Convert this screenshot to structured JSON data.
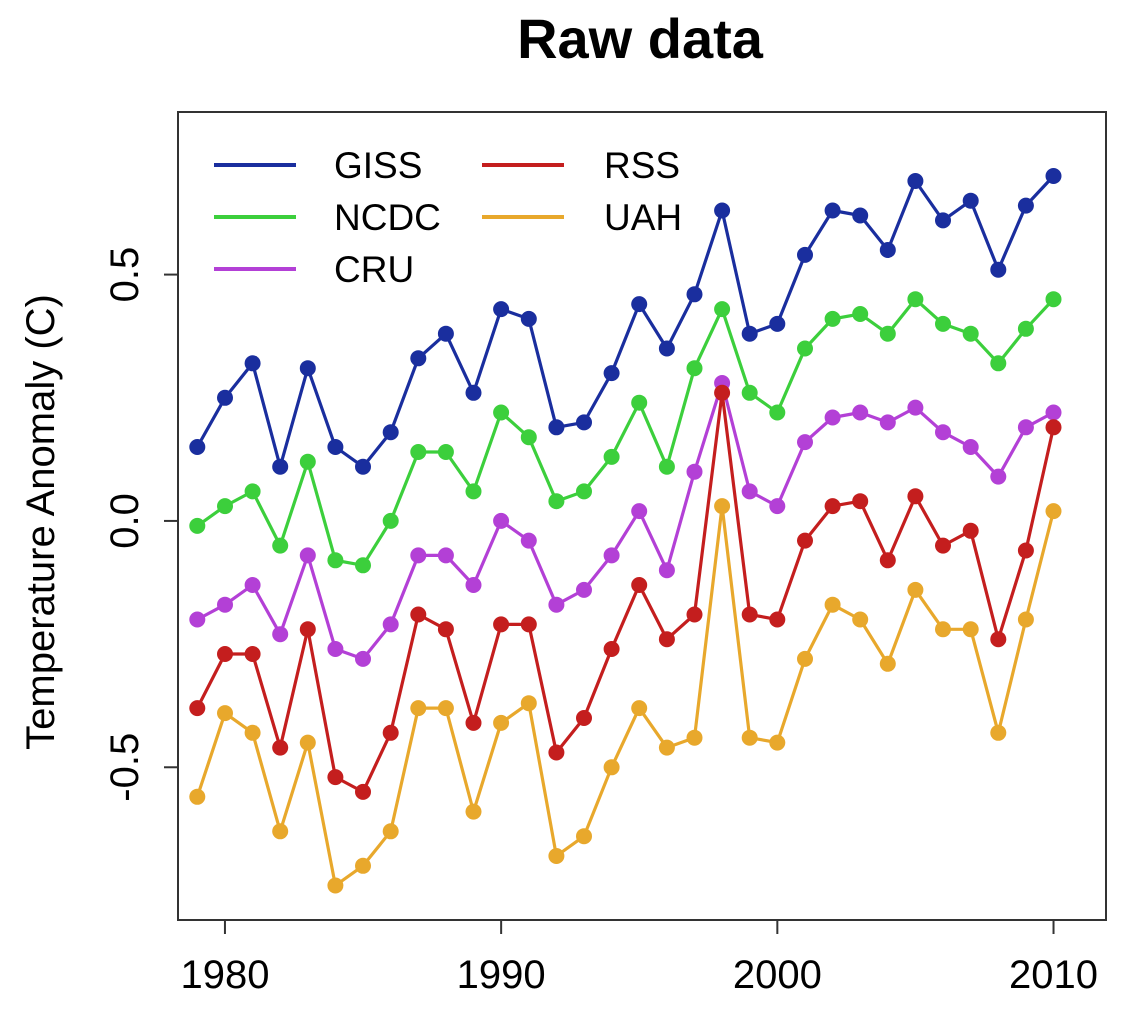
{
  "chart_data": {
    "type": "line",
    "title": "Raw data",
    "xlabel": "",
    "ylabel": "Temperature Anomaly (C)",
    "xlim": [
      1978.3,
      2011.9
    ],
    "ylim": [
      -0.81,
      0.83
    ],
    "xticks": [
      {
        "value": 1980,
        "label": "1980"
      },
      {
        "value": 1990,
        "label": "1990"
      },
      {
        "value": 2000,
        "label": "2000"
      },
      {
        "value": 2010,
        "label": "2010"
      }
    ],
    "yticks": [
      {
        "value": -0.5,
        "label": "-0.5"
      },
      {
        "value": 0.0,
        "label": "0.0"
      },
      {
        "value": 0.5,
        "label": "0.5"
      }
    ],
    "grid": false,
    "legend_position": "top-left",
    "x": [
      1979,
      1980,
      1981,
      1982,
      1983,
      1984,
      1985,
      1986,
      1987,
      1988,
      1989,
      1990,
      1991,
      1992,
      1993,
      1994,
      1995,
      1996,
      1997,
      1998,
      1999,
      2000,
      2001,
      2002,
      2003,
      2004,
      2005,
      2006,
      2007,
      2008,
      2009,
      2010
    ],
    "series": [
      {
        "name": "GISS",
        "color": "#1a2e9e",
        "values": [
          0.15,
          0.25,
          0.32,
          0.11,
          0.31,
          0.15,
          0.11,
          0.18,
          0.33,
          0.38,
          0.26,
          0.43,
          0.41,
          0.19,
          0.2,
          0.3,
          0.44,
          0.35,
          0.46,
          0.63,
          0.38,
          0.4,
          0.54,
          0.63,
          0.62,
          0.55,
          0.69,
          0.61,
          0.65,
          0.51,
          0.64,
          0.7
        ]
      },
      {
        "name": "NCDC",
        "color": "#3ccf3c",
        "values": [
          -0.01,
          0.03,
          0.06,
          -0.05,
          0.12,
          -0.08,
          -0.09,
          0.0,
          0.14,
          0.14,
          0.06,
          0.22,
          0.17,
          0.04,
          0.06,
          0.13,
          0.24,
          0.11,
          0.31,
          0.43,
          0.26,
          0.22,
          0.35,
          0.41,
          0.42,
          0.38,
          0.45,
          0.4,
          0.38,
          0.32,
          0.39,
          0.45
        ]
      },
      {
        "name": "CRU",
        "color": "#b340d6",
        "values": [
          -0.2,
          -0.17,
          -0.13,
          -0.23,
          -0.07,
          -0.26,
          -0.28,
          -0.21,
          -0.07,
          -0.07,
          -0.13,
          0.0,
          -0.04,
          -0.17,
          -0.14,
          -0.07,
          0.02,
          -0.1,
          0.1,
          0.28,
          0.06,
          0.03,
          0.16,
          0.21,
          0.22,
          0.2,
          0.23,
          0.18,
          0.15,
          0.09,
          0.19,
          0.22
        ]
      },
      {
        "name": "RSS",
        "color": "#c41e1e",
        "values": [
          -0.38,
          -0.27,
          -0.27,
          -0.46,
          -0.22,
          -0.52,
          -0.55,
          -0.43,
          -0.19,
          -0.22,
          -0.41,
          -0.21,
          -0.21,
          -0.47,
          -0.4,
          -0.26,
          -0.13,
          -0.24,
          -0.19,
          0.26,
          -0.19,
          -0.2,
          -0.04,
          0.03,
          0.04,
          -0.08,
          0.05,
          -0.05,
          -0.02,
          -0.24,
          -0.06,
          0.19
        ]
      },
      {
        "name": "UAH",
        "color": "#e8a82c",
        "values": [
          -0.56,
          -0.39,
          -0.43,
          -0.63,
          -0.45,
          -0.74,
          -0.7,
          -0.63,
          -0.38,
          -0.38,
          -0.59,
          -0.41,
          -0.37,
          -0.68,
          -0.64,
          -0.5,
          -0.38,
          -0.46,
          -0.44,
          0.03,
          -0.44,
          -0.45,
          -0.28,
          -0.17,
          -0.2,
          -0.29,
          -0.14,
          -0.22,
          -0.22,
          -0.43,
          -0.2,
          0.02
        ]
      }
    ]
  }
}
